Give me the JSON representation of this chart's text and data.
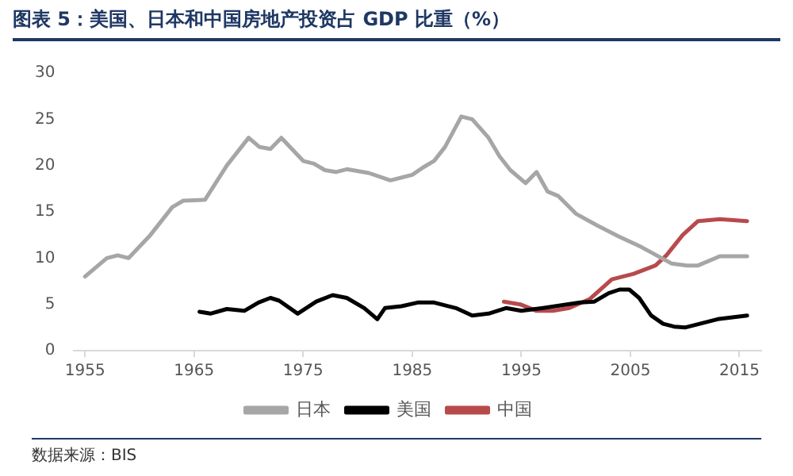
{
  "chart_data": {
    "type": "line",
    "title": "图表 5：美国、日本和中国房地产投资占 GDP 比重（%）",
    "xlim": [
      1954,
      2017
    ],
    "xticks": [
      1955,
      1965,
      1975,
      1985,
      1995,
      2005,
      2015
    ],
    "ylim": [
      0,
      30
    ],
    "yticks": [
      0,
      5,
      10,
      15,
      20,
      25,
      30
    ],
    "grid": false,
    "legend": "bottom",
    "marker": "none",
    "line_style": "solid",
    "annotations": [
      "数据来源：BIS"
    ],
    "series": [
      {
        "name": "日本",
        "color": "#a6a6a6",
        "x": [
          1955,
          1957,
          1958,
          1959,
          1961,
          1963,
          1964,
          1966,
          1968,
          1970,
          1971,
          1972,
          1973,
          1975,
          1976,
          1977,
          1978,
          1979,
          1981,
          1983,
          1985,
          1986,
          1987,
          1988,
          1989.5,
          1990.5,
          1992,
          1993,
          1994,
          1995.4,
          1996.4,
          1997.4,
          1998.4,
          2000,
          2002,
          2004,
          2006,
          2008.8,
          2010.2,
          2011.2,
          2013.2,
          2015.7
        ],
        "values": [
          8.0,
          10.0,
          10.3,
          10.0,
          12.5,
          15.5,
          16.2,
          16.3,
          20.0,
          23.0,
          22.0,
          21.8,
          23.0,
          20.5,
          20.2,
          19.5,
          19.3,
          19.6,
          19.2,
          18.4,
          19.0,
          19.8,
          20.5,
          22.0,
          25.3,
          25.0,
          23.0,
          21.0,
          19.5,
          18.1,
          19.3,
          17.2,
          16.7,
          14.8,
          13.5,
          12.3,
          11.2,
          9.4,
          9.2,
          9.2,
          10.2,
          10.2
        ]
      },
      {
        "name": "美国",
        "color": "#000000",
        "x": [
          1965.5,
          1966.5,
          1968,
          1969.6,
          1970.9,
          1972,
          1972.8,
          1974.5,
          1976.2,
          1977.7,
          1979,
          1980.6,
          1981.8,
          1982.5,
          1984,
          1985.5,
          1987,
          1989,
          1990.5,
          1992,
          1993.6,
          1995,
          1997,
          1998.7,
          2000.4,
          2001.7,
          2003,
          2004,
          2004.9,
          2005.8,
          2006.9,
          2008,
          2009,
          2010,
          2011,
          2013,
          2015.7
        ],
        "values": [
          4.2,
          4.0,
          4.5,
          4.3,
          5.2,
          5.7,
          5.4,
          4.0,
          5.3,
          6.0,
          5.7,
          4.6,
          3.4,
          4.6,
          4.8,
          5.2,
          5.2,
          4.6,
          3.8,
          4.0,
          4.6,
          4.3,
          4.6,
          4.9,
          5.2,
          5.3,
          6.2,
          6.6,
          6.6,
          5.7,
          3.8,
          2.9,
          2.6,
          2.5,
          2.8,
          3.4,
          3.8
        ]
      },
      {
        "name": "中国",
        "color": "#b84a4c",
        "x": [
          1993.4,
          1994.9,
          1996.4,
          1997.9,
          1999.4,
          2001.3,
          2003.3,
          2005.3,
          2007.3,
          2008.3,
          2009.8,
          2011.2,
          2013.2,
          2015.7
        ],
        "values": [
          5.3,
          5.0,
          4.3,
          4.3,
          4.6,
          5.6,
          7.7,
          8.3,
          9.2,
          10.3,
          12.5,
          14.0,
          14.2,
          14.0
        ]
      }
    ]
  }
}
